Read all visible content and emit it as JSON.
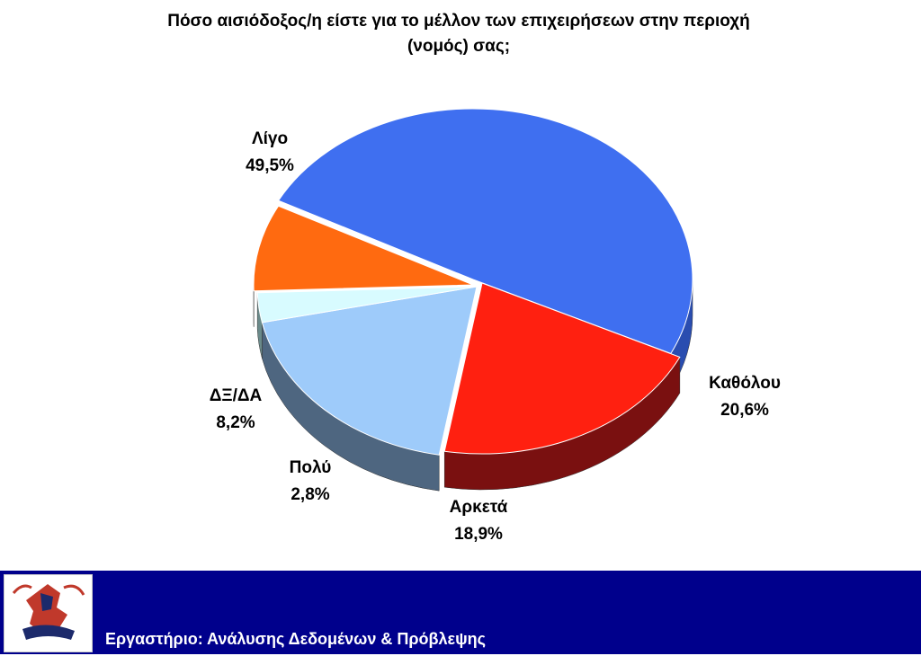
{
  "chart_data": {
    "type": "pie",
    "title": "Πόσο αισιόδοξος/η είστε για το μέλλον των επιχειρήσεων στην περιοχή (νομός)  σας;",
    "title_lines": [
      "Πόσο αισιόδοξος/η είστε για το μέλλον των επιχειρήσεων στην περιοχή",
      "(νομός)  σας;"
    ],
    "three_d": true,
    "slices": [
      {
        "key": "ligo",
        "label": "Λίγο",
        "value": 49.5,
        "value_label": "49,5%",
        "color": "#3f6ff0",
        "side": "#2a4db0"
      },
      {
        "key": "katholou",
        "label": "Καθόλου",
        "value": 20.6,
        "value_label": "20,6%",
        "color": "#ff2010",
        "side": "#7a1010"
      },
      {
        "key": "arketa",
        "label": "Αρκετά",
        "value": 18.9,
        "value_label": "18,9%",
        "color": "#9ecbfa",
        "side": "#4e6680"
      },
      {
        "key": "poly",
        "label": "Πολύ",
        "value": 2.8,
        "value_label": "2,8%",
        "color": "#d8fbff",
        "side": "#6a8a8a"
      },
      {
        "key": "dxda",
        "label": "ΔΞ/ΔΑ",
        "value": 8.2,
        "value_label": "8,2%",
        "color": "#ff6a10",
        "side": "#8a3a10"
      }
    ]
  },
  "footer": {
    "text": "Εργαστήριο: Ανάλυσης Δεδομένων & Πρόβλεψης",
    "background": "#00008c",
    "logo": "university-emblem-icon"
  }
}
